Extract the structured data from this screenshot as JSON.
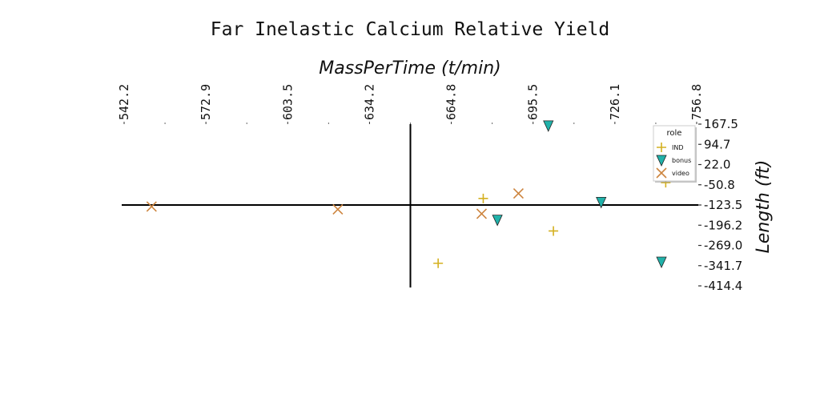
{
  "chart_data": {
    "type": "scatter",
    "title": "Far Inelastic Calcium Relative Yield",
    "xlabel": "MassPerTime (t/min)",
    "ylabel": "Length (ft)",
    "xlim": [
      542.2,
      756.8
    ],
    "ylim": [
      -414.4,
      167.5
    ],
    "x_ticks": [
      "542.2",
      "572.9",
      "603.5",
      "634.2",
      "664.8",
      "695.5",
      "726.1",
      "756.8"
    ],
    "y_ticks": [
      "167.5",
      "94.7",
      "22.0",
      "-50.8",
      "-123.5",
      "-196.2",
      "-269.0",
      "-341.7",
      "-414.4"
    ],
    "x_axis_position": "top",
    "y_axis_position": "right",
    "grid": false,
    "zero_lines": {
      "x": 649.5,
      "y": -123.5
    },
    "legend": {
      "title": "role",
      "position": "top-right"
    },
    "series": [
      {
        "name": "IND",
        "marker": "plus",
        "color": "#d4b020",
        "points": [
          [
            676.8,
            -100
          ],
          [
            703.1,
            -217
          ],
          [
            659.9,
            -333
          ],
          [
            745.2,
            -43
          ]
        ]
      },
      {
        "name": "bonus",
        "marker": "triangle-down",
        "color": "#20b2aa",
        "points": [
          [
            701.2,
            162
          ],
          [
            682.1,
            -177
          ],
          [
            721.0,
            -113
          ],
          [
            743.6,
            -328
          ]
        ]
      },
      {
        "name": "video",
        "marker": "x",
        "color": "#cd853f",
        "points": [
          [
            552.5,
            -129
          ],
          [
            622.3,
            -139
          ],
          [
            676.2,
            -155
          ],
          [
            690.0,
            -82
          ]
        ]
      }
    ]
  }
}
